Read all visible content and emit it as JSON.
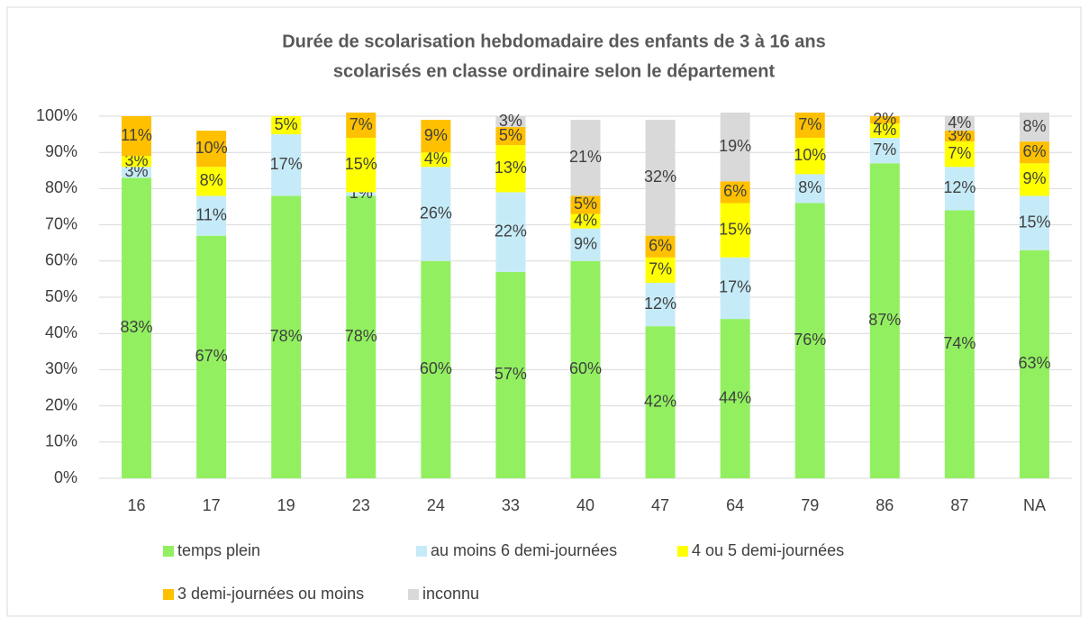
{
  "chart_data": {
    "type": "bar",
    "stacked": true,
    "title": [
      "Durée de scolarisation hebdomadaire des enfants de 3 à 16 ans",
      "scolarisés en classe ordinaire selon le département"
    ],
    "categories": [
      "16",
      "17",
      "19",
      "23",
      "24",
      "33",
      "40",
      "47",
      "64",
      "79",
      "86",
      "87",
      "NA"
    ],
    "series": [
      {
        "name": "temps plein",
        "color": "#92f060",
        "values": [
          83,
          67,
          78,
          78,
          60,
          57,
          60,
          42,
          44,
          76,
          87,
          74,
          63
        ],
        "value_labels": [
          "83%",
          "67%",
          "78%",
          "78%",
          "60%",
          "57%",
          "60%",
          "42%",
          "44%",
          "76%",
          "87%",
          "74%",
          "63%"
        ]
      },
      {
        "name": "au moins 6 demi-journées",
        "color": "#c6ebf8",
        "values": [
          3,
          11,
          17,
          1,
          26,
          22,
          9,
          12,
          17,
          8,
          7,
          12,
          15
        ],
        "value_labels": [
          "3%",
          "11%",
          "17%",
          "1%",
          "26%",
          "22%",
          "9%",
          "12%",
          "17%",
          "8%",
          "7%",
          "12%",
          "15%"
        ]
      },
      {
        "name": "4 ou 5 demi-journées",
        "color": "#ffff00",
        "values": [
          3,
          8,
          5,
          15,
          4,
          13,
          4,
          7,
          15,
          10,
          4,
          7,
          9
        ],
        "value_labels": [
          "3%",
          "8%",
          "5%",
          "15%",
          "4%",
          "13%",
          "4%",
          "7%",
          "15%",
          "10%",
          "4%",
          "7%",
          "9%"
        ]
      },
      {
        "name": "3 demi-journées ou moins",
        "color": "#ffc000",
        "values": [
          11,
          10,
          null,
          7,
          9,
          5,
          5,
          6,
          6,
          7,
          2,
          3,
          6
        ],
        "value_labels": [
          "11%",
          "10%",
          null,
          "7%",
          "9%",
          "5%",
          "5%",
          "6%",
          "6%",
          "7%",
          "2%",
          "3%",
          "6%"
        ]
      },
      {
        "name": "inconnu",
        "color": "#d9d9d9",
        "values": [
          null,
          null,
          null,
          null,
          null,
          3,
          21,
          32,
          19,
          null,
          null,
          4,
          8
        ],
        "value_labels": [
          null,
          null,
          null,
          null,
          null,
          "3%",
          "21%",
          "32%",
          "19%",
          null,
          null,
          "4%",
          "8%"
        ]
      }
    ],
    "ylim": [
      0,
      100
    ],
    "yticks": [
      {
        "value": 0,
        "label": "0%"
      },
      {
        "value": 10,
        "label": "10%"
      },
      {
        "value": 20,
        "label": "20%"
      },
      {
        "value": 30,
        "label": "30%"
      },
      {
        "value": 40,
        "label": "40%"
      },
      {
        "value": 50,
        "label": "50%"
      },
      {
        "value": 60,
        "label": "60%"
      },
      {
        "value": 70,
        "label": "70%"
      },
      {
        "value": 80,
        "label": "80%"
      },
      {
        "value": 90,
        "label": "90%"
      },
      {
        "value": 100,
        "label": "100%"
      }
    ],
    "grid": true,
    "legend": "bottom"
  }
}
